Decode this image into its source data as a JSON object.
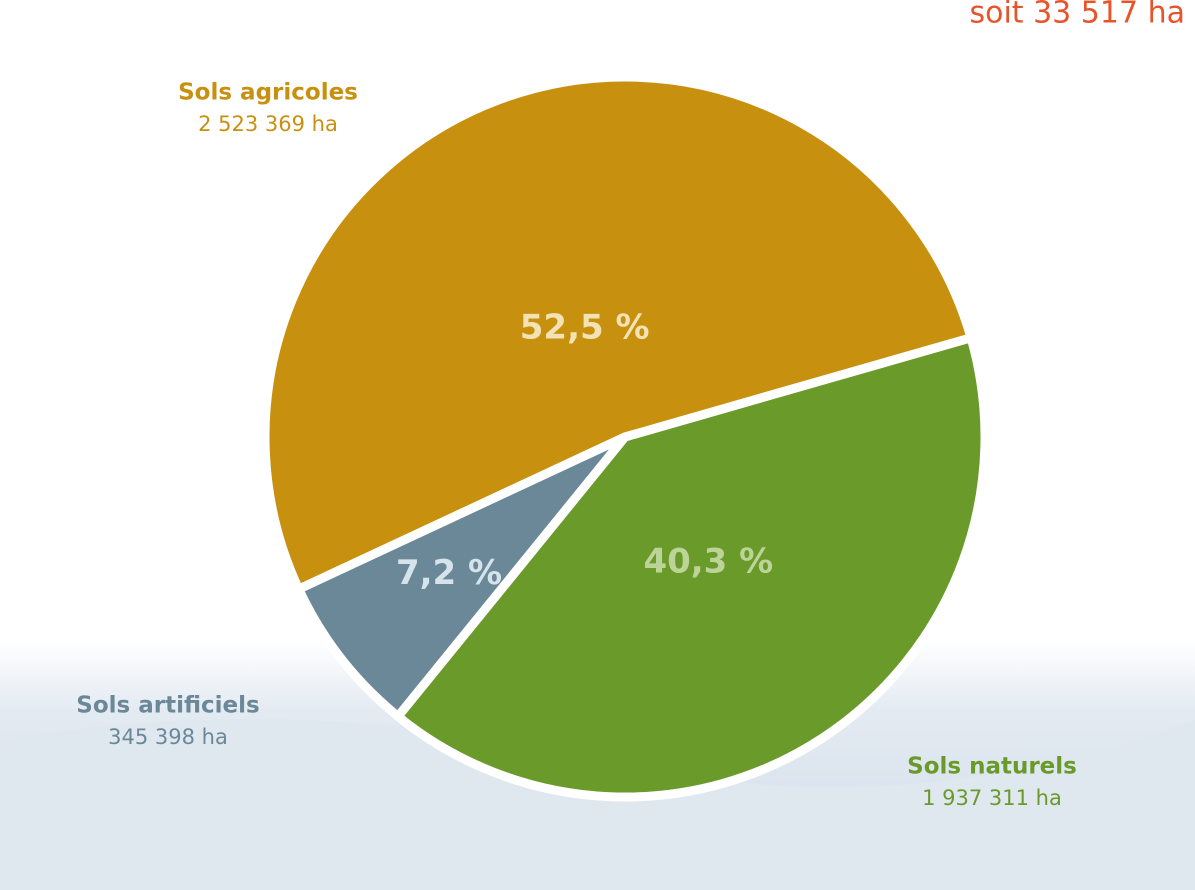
{
  "chart_data": {
    "type": "pie",
    "annotation": "soit 33 517 ha",
    "categories": [
      "Sols agricoles",
      "Sols artificiels",
      "Sols naturels"
    ],
    "values": [
      52.5,
      7.2,
      40.3
    ],
    "value_labels": [
      "52,5 %",
      "7,2 %",
      "40,3 %"
    ],
    "areas": [
      2523369,
      345398,
      1937311
    ],
    "area_labels": [
      "2 523 369 ha",
      "345 398 ha",
      "1 937 311 ha"
    ],
    "colors": [
      "#c8900f",
      "#6b8899",
      "#6a9a2a"
    ]
  }
}
